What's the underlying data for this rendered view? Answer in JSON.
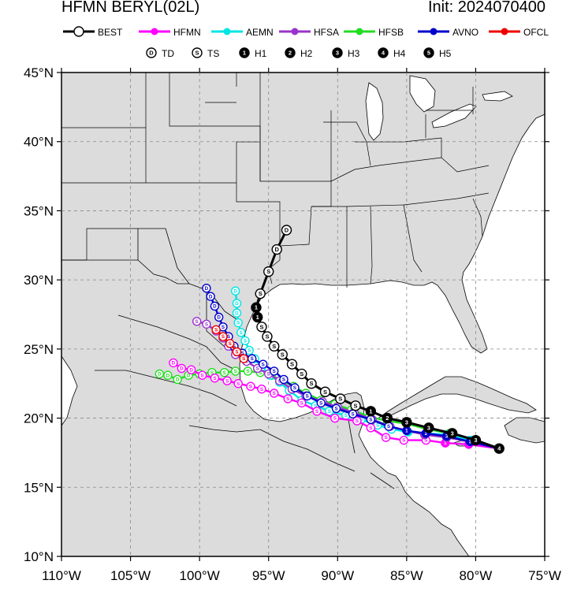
{
  "header": {
    "title": "HFMN BERYL(02L)",
    "init": "Init: 2024070400"
  },
  "legend": {
    "models": [
      {
        "key": "best",
        "label": "BEST",
        "color": "#000000"
      },
      {
        "key": "hfmn",
        "label": "HFMN",
        "color": "#ff00ff"
      },
      {
        "key": "aemn",
        "label": "AEMN",
        "color": "#00e5e5"
      },
      {
        "key": "hfsa",
        "label": "HFSA",
        "color": "#9933cc"
      },
      {
        "key": "hfsb",
        "label": "HFSB",
        "color": "#22dd22"
      },
      {
        "key": "avno",
        "label": "AVNO",
        "color": "#0000cc"
      },
      {
        "key": "ofcl",
        "label": "OFCL",
        "color": "#ee0000"
      }
    ],
    "intensity": [
      {
        "glyph": "D",
        "label": "TD"
      },
      {
        "glyph": "S",
        "label": "TS"
      },
      {
        "glyph": "1",
        "label": "H1"
      },
      {
        "glyph": "2",
        "label": "H2"
      },
      {
        "glyph": "3",
        "label": "H3"
      },
      {
        "glyph": "4",
        "label": "H4"
      },
      {
        "glyph": "5",
        "label": "H5"
      }
    ]
  },
  "axes": {
    "lon_range": [
      -110,
      -75
    ],
    "lat_range": [
      10,
      45
    ],
    "lon_ticks": [
      "110°W",
      "105°W",
      "100°W",
      "95°W",
      "90°W",
      "85°W",
      "80°W",
      "75°W"
    ],
    "lat_ticks": [
      "45°N",
      "40°N",
      "35°N",
      "30°N",
      "25°N",
      "20°N",
      "15°N",
      "10°N"
    ]
  },
  "colors": {
    "land": "#dcdcdc",
    "ocean": "#ffffff",
    "border": "#000000",
    "grid": "#999999"
  },
  "tracks": {
    "best": [
      {
        "lon": -78.3,
        "lat": 17.8,
        "g": "4"
      },
      {
        "lon": -80.0,
        "lat": 18.4,
        "g": "3"
      },
      {
        "lon": -81.7,
        "lat": 18.9,
        "g": "3"
      },
      {
        "lon": -83.4,
        "lat": 19.3,
        "g": "3"
      },
      {
        "lon": -85.0,
        "lat": 19.7,
        "g": "3"
      },
      {
        "lon": -86.4,
        "lat": 20.0,
        "g": "2"
      },
      {
        "lon": -87.6,
        "lat": 20.5,
        "g": "1"
      },
      {
        "lon": -88.7,
        "lat": 20.9,
        "g": "S"
      },
      {
        "lon": -89.8,
        "lat": 21.4,
        "g": "S"
      },
      {
        "lon": -90.9,
        "lat": 21.9,
        "g": "S"
      },
      {
        "lon": -91.9,
        "lat": 22.5,
        "g": "S"
      },
      {
        "lon": -92.6,
        "lat": 23.2,
        "g": "S"
      },
      {
        "lon": -93.3,
        "lat": 23.9,
        "g": "S"
      },
      {
        "lon": -94.0,
        "lat": 24.6,
        "g": "S"
      },
      {
        "lon": -94.6,
        "lat": 25.2,
        "g": "S"
      },
      {
        "lon": -95.1,
        "lat": 25.9,
        "g": "S"
      },
      {
        "lon": -95.5,
        "lat": 26.6,
        "g": "S"
      },
      {
        "lon": -95.8,
        "lat": 27.3,
        "g": "1"
      },
      {
        "lon": -95.9,
        "lat": 28.0,
        "g": "1"
      },
      {
        "lon": -95.6,
        "lat": 29.0,
        "g": "S"
      },
      {
        "lon": -95.0,
        "lat": 30.6,
        "g": "S"
      },
      {
        "lon": -94.4,
        "lat": 32.2,
        "g": "D"
      },
      {
        "lon": -93.7,
        "lat": 33.6,
        "g": "D"
      }
    ],
    "hfmn": [
      {
        "lon": -78.3,
        "lat": 17.8,
        "g": "4"
      },
      {
        "lon": -80.5,
        "lat": 18.1,
        "g": "3"
      },
      {
        "lon": -82.2,
        "lat": 18.2,
        "g": "1"
      },
      {
        "lon": -83.6,
        "lat": 18.4,
        "g": "S"
      },
      {
        "lon": -85.2,
        "lat": 18.4,
        "g": "S"
      },
      {
        "lon": -86.5,
        "lat": 18.6,
        "g": "S"
      },
      {
        "lon": -87.6,
        "lat": 19.3,
        "g": "S"
      },
      {
        "lon": -88.6,
        "lat": 19.8,
        "g": "S"
      },
      {
        "lon": -90.2,
        "lat": 20.0,
        "g": "S"
      },
      {
        "lon": -91.5,
        "lat": 20.5,
        "g": "S"
      },
      {
        "lon": -92.6,
        "lat": 21.1,
        "g": "S"
      },
      {
        "lon": -93.6,
        "lat": 21.4,
        "g": "S"
      },
      {
        "lon": -94.6,
        "lat": 21.8,
        "g": "S"
      },
      {
        "lon": -95.5,
        "lat": 22.1,
        "g": "S"
      },
      {
        "lon": -96.3,
        "lat": 22.3,
        "g": "S"
      },
      {
        "lon": -97.2,
        "lat": 22.5,
        "g": "S"
      },
      {
        "lon": -98.0,
        "lat": 22.7,
        "g": "S"
      },
      {
        "lon": -98.9,
        "lat": 22.9,
        "g": "S"
      },
      {
        "lon": -99.8,
        "lat": 23.1,
        "g": "S"
      },
      {
        "lon": -100.6,
        "lat": 23.5,
        "g": "D"
      },
      {
        "lon": -101.3,
        "lat": 23.6,
        "g": "D"
      },
      {
        "lon": -101.9,
        "lat": 24.0,
        "g": "D"
      }
    ],
    "aemn": [
      {
        "lon": -78.3,
        "lat": 17.8,
        "g": "4"
      },
      {
        "lon": -80.4,
        "lat": 18.4,
        "g": "3"
      },
      {
        "lon": -82.0,
        "lat": 18.8,
        "g": "3"
      },
      {
        "lon": -83.6,
        "lat": 18.9,
        "g": "2"
      },
      {
        "lon": -84.9,
        "lat": 19.0,
        "g": "1"
      },
      {
        "lon": -86.1,
        "lat": 19.2,
        "g": "S"
      },
      {
        "lon": -87.1,
        "lat": 19.5,
        "g": "S"
      },
      {
        "lon": -88.3,
        "lat": 19.9,
        "g": "S"
      },
      {
        "lon": -89.4,
        "lat": 20.2,
        "g": "S"
      },
      {
        "lon": -90.6,
        "lat": 20.5,
        "g": "S"
      },
      {
        "lon": -91.6,
        "lat": 20.9,
        "g": "S"
      },
      {
        "lon": -92.6,
        "lat": 21.3,
        "g": "S"
      },
      {
        "lon": -93.5,
        "lat": 22.0,
        "g": "S"
      },
      {
        "lon": -94.2,
        "lat": 22.6,
        "g": "S"
      },
      {
        "lon": -94.9,
        "lat": 23.1,
        "g": "S"
      },
      {
        "lon": -95.5,
        "lat": 23.7,
        "g": "S"
      },
      {
        "lon": -96.0,
        "lat": 24.3,
        "g": "S"
      },
      {
        "lon": -96.4,
        "lat": 24.9,
        "g": "S"
      },
      {
        "lon": -96.7,
        "lat": 25.6,
        "g": "S"
      },
      {
        "lon": -97.0,
        "lat": 26.2,
        "g": "S"
      },
      {
        "lon": -97.2,
        "lat": 26.9,
        "g": "S"
      },
      {
        "lon": -97.3,
        "lat": 27.6,
        "g": "D"
      },
      {
        "lon": -97.3,
        "lat": 28.3,
        "g": "D"
      },
      {
        "lon": -97.4,
        "lat": 29.2,
        "g": "D"
      }
    ],
    "hfsa": [
      {
        "lon": -78.3,
        "lat": 17.8,
        "g": "4"
      },
      {
        "lon": -80.4,
        "lat": 18.3,
        "g": "3"
      },
      {
        "lon": -82.1,
        "lat": 18.6,
        "g": "3"
      },
      {
        "lon": -83.7,
        "lat": 18.8,
        "g": "2"
      },
      {
        "lon": -85.0,
        "lat": 19.1,
        "g": "1"
      },
      {
        "lon": -86.2,
        "lat": 19.4,
        "g": "S"
      },
      {
        "lon": -87.5,
        "lat": 19.9,
        "g": "S"
      },
      {
        "lon": -88.8,
        "lat": 20.4,
        "g": "S"
      },
      {
        "lon": -90.0,
        "lat": 20.8,
        "g": "S"
      },
      {
        "lon": -91.1,
        "lat": 21.2,
        "g": "S"
      },
      {
        "lon": -92.3,
        "lat": 21.6,
        "g": "S"
      },
      {
        "lon": -93.3,
        "lat": 22.1,
        "g": "S"
      },
      {
        "lon": -94.2,
        "lat": 22.7,
        "g": "S"
      },
      {
        "lon": -95.0,
        "lat": 23.2,
        "g": "S"
      },
      {
        "lon": -95.8,
        "lat": 23.6,
        "g": "S"
      },
      {
        "lon": -96.6,
        "lat": 24.1,
        "g": "S"
      },
      {
        "lon": -97.4,
        "lat": 24.6,
        "g": "S"
      },
      {
        "lon": -97.9,
        "lat": 25.2,
        "g": "S"
      },
      {
        "lon": -98.3,
        "lat": 25.8,
        "g": "S"
      },
      {
        "lon": -98.8,
        "lat": 26.3,
        "g": "S"
      },
      {
        "lon": -99.5,
        "lat": 26.8,
        "g": "S"
      },
      {
        "lon": -100.2,
        "lat": 27.0,
        "g": "S"
      }
    ],
    "hfsb": [
      {
        "lon": -78.3,
        "lat": 17.8,
        "g": "4"
      },
      {
        "lon": -80.2,
        "lat": 18.4,
        "g": "3"
      },
      {
        "lon": -81.9,
        "lat": 18.9,
        "g": "3"
      },
      {
        "lon": -83.5,
        "lat": 19.2,
        "g": "3"
      },
      {
        "lon": -85.0,
        "lat": 19.6,
        "g": "2"
      },
      {
        "lon": -86.4,
        "lat": 19.8,
        "g": "1"
      },
      {
        "lon": -87.7,
        "lat": 20.1,
        "g": "S"
      },
      {
        "lon": -89.0,
        "lat": 20.6,
        "g": "S"
      },
      {
        "lon": -90.2,
        "lat": 21.0,
        "g": "S"
      },
      {
        "lon": -91.2,
        "lat": 21.3,
        "g": "S"
      },
      {
        "lon": -92.3,
        "lat": 21.8,
        "g": "S"
      },
      {
        "lon": -93.2,
        "lat": 22.3,
        "g": "S"
      },
      {
        "lon": -94.0,
        "lat": 22.7,
        "g": "S"
      },
      {
        "lon": -94.8,
        "lat": 23.1,
        "g": "S"
      },
      {
        "lon": -95.6,
        "lat": 23.3,
        "g": "S"
      },
      {
        "lon": -96.5,
        "lat": 23.4,
        "g": "S"
      },
      {
        "lon": -97.4,
        "lat": 23.4,
        "g": "S"
      },
      {
        "lon": -98.2,
        "lat": 23.3,
        "g": "S"
      },
      {
        "lon": -99.1,
        "lat": 23.3,
        "g": "S"
      },
      {
        "lon": -100.0,
        "lat": 23.2,
        "g": "S"
      },
      {
        "lon": -100.8,
        "lat": 23.1,
        "g": "D"
      },
      {
        "lon": -101.6,
        "lat": 22.8,
        "g": "D"
      },
      {
        "lon": -102.3,
        "lat": 23.1,
        "g": "D"
      },
      {
        "lon": -102.9,
        "lat": 23.2,
        "g": "D"
      }
    ],
    "avno": [
      {
        "lon": -78.3,
        "lat": 17.8,
        "g": "4"
      },
      {
        "lon": -80.4,
        "lat": 18.3,
        "g": "3"
      },
      {
        "lon": -82.1,
        "lat": 18.7,
        "g": "3"
      },
      {
        "lon": -83.6,
        "lat": 18.9,
        "g": "2"
      },
      {
        "lon": -85.0,
        "lat": 19.1,
        "g": "1"
      },
      {
        "lon": -86.3,
        "lat": 19.4,
        "g": "S"
      },
      {
        "lon": -87.6,
        "lat": 19.9,
        "g": "S"
      },
      {
        "lon": -88.9,
        "lat": 20.3,
        "g": "S"
      },
      {
        "lon": -90.1,
        "lat": 20.7,
        "g": "S"
      },
      {
        "lon": -91.2,
        "lat": 21.1,
        "g": "S"
      },
      {
        "lon": -92.2,
        "lat": 21.6,
        "g": "S"
      },
      {
        "lon": -93.1,
        "lat": 22.2,
        "g": "S"
      },
      {
        "lon": -93.9,
        "lat": 22.8,
        "g": "S"
      },
      {
        "lon": -94.6,
        "lat": 23.4,
        "g": "S"
      },
      {
        "lon": -95.4,
        "lat": 23.9,
        "g": "S"
      },
      {
        "lon": -96.2,
        "lat": 24.3,
        "g": "S"
      },
      {
        "lon": -96.9,
        "lat": 24.7,
        "g": "S"
      },
      {
        "lon": -97.5,
        "lat": 25.2,
        "g": "S"
      },
      {
        "lon": -97.9,
        "lat": 25.9,
        "g": "S"
      },
      {
        "lon": -98.3,
        "lat": 26.6,
        "g": "S"
      },
      {
        "lon": -98.6,
        "lat": 27.3,
        "g": "D"
      },
      {
        "lon": -98.9,
        "lat": 28.1,
        "g": "D"
      },
      {
        "lon": -99.2,
        "lat": 28.8,
        "g": "D"
      },
      {
        "lon": -99.5,
        "lat": 29.4,
        "g": "D"
      }
    ],
    "ofcl": [
      {
        "lon": -96.8,
        "lat": 24.3,
        "g": "S"
      },
      {
        "lon": -97.3,
        "lat": 24.8,
        "g": "S"
      },
      {
        "lon": -97.8,
        "lat": 25.4,
        "g": "S"
      },
      {
        "lon": -98.3,
        "lat": 25.9,
        "g": "S"
      },
      {
        "lon": -98.8,
        "lat": 26.4,
        "g": "S"
      }
    ]
  }
}
